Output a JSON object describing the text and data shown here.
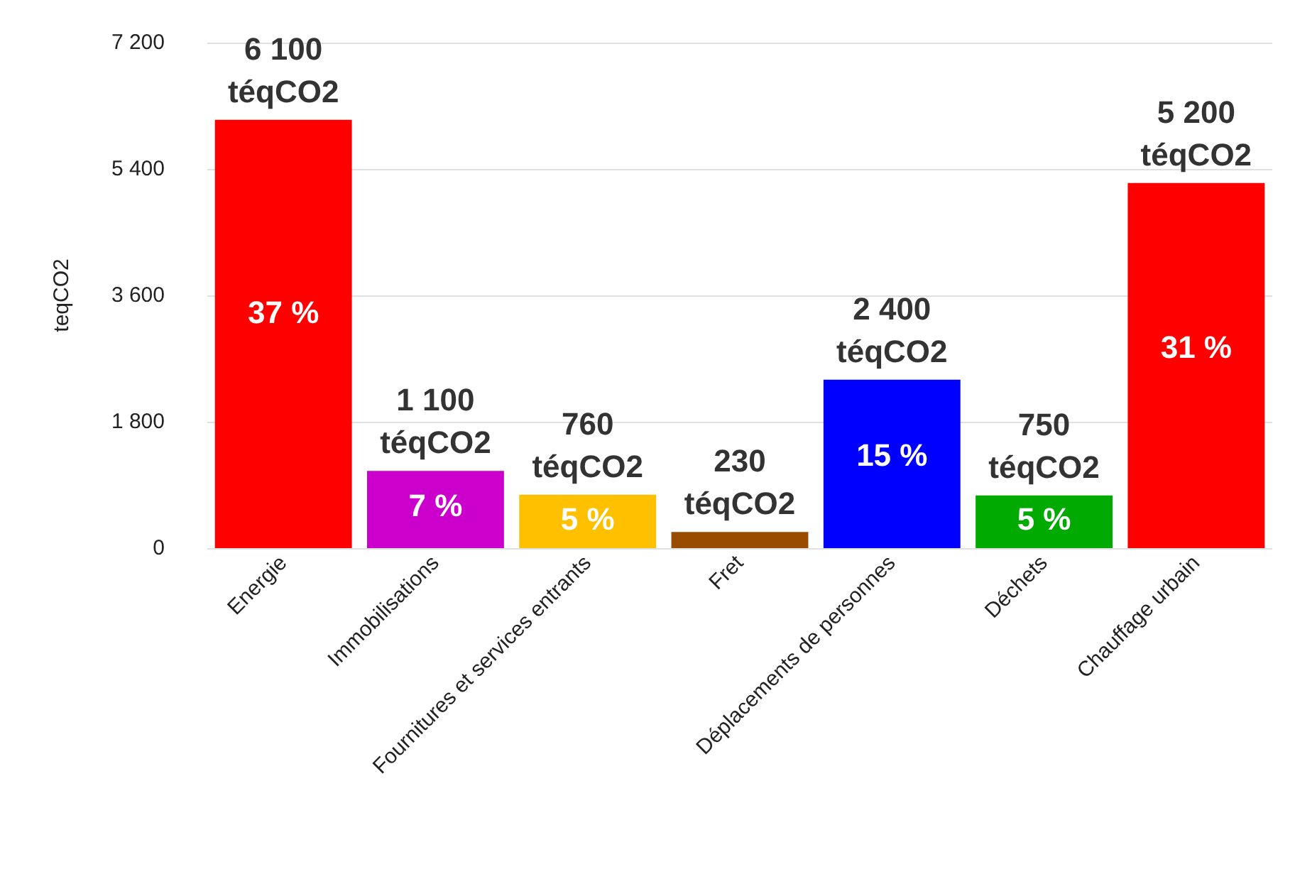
{
  "chart_data": {
    "type": "bar",
    "ylabel": "teqCO2",
    "categories": [
      "Energie",
      "Immobilisations",
      "Fournitures et services entrants",
      "Fret",
      "Déplacements de personnes",
      "Déchets",
      "Chauffage urbain"
    ],
    "values": [
      6100,
      1100,
      760,
      230,
      2400,
      750,
      5200
    ],
    "colors": [
      "#ff0000",
      "#cc00cc",
      "#ffc000",
      "#994c00",
      "#0000ff",
      "#00aa00",
      "#ff0000"
    ],
    "value_labels": [
      "6 100 téqCO2",
      "1 100 téqCO2",
      "760 téqCO2",
      "230 téqCO2",
      "2 400 téqCO2",
      "750 téqCO2",
      "5 200 téqCO2"
    ],
    "ylim": [
      0,
      7200
    ],
    "yticks": [
      0,
      {
        "value": 1800,
        "label": "1 800"
      },
      {
        "value": 3600,
        "label": "3 600"
      },
      {
        "value": 5400,
        "label": "5 400"
      },
      {
        "value": 7200,
        "label": "7 200"
      }
    ],
    "grid": "y",
    "annotations": [
      "37 %",
      "7 %",
      "5 %",
      "15 %",
      "5 %",
      "31 %"
    ]
  }
}
